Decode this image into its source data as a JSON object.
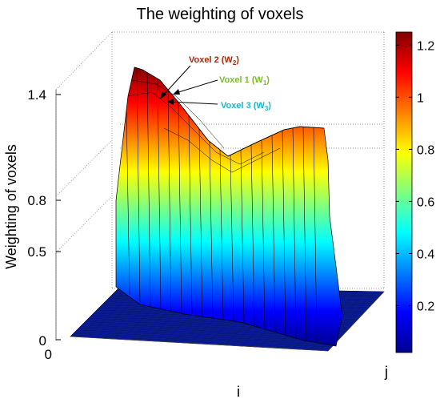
{
  "chart_data": {
    "type": "surface",
    "title": "The weighting of voxels",
    "xlabel": "i",
    "ylabel": "j",
    "zlabel": "Weighting of voxels",
    "z_ticks": [
      "0",
      "0.5",
      "0.8",
      "1.4"
    ],
    "x_ticks": [
      "0"
    ],
    "colormap": "jet",
    "colorbar": {
      "ticks": [
        "0.2",
        "0.4",
        "0.6",
        "0.8",
        "1",
        "1.2"
      ],
      "values": [
        0.2,
        0.4,
        0.6,
        0.8,
        1.0,
        1.2
      ],
      "range": [
        0.02,
        1.25
      ]
    },
    "annotations": [
      {
        "text": "Voxel 2 (W",
        "sub": "2",
        "close": ")",
        "color": "#a52a0a"
      },
      {
        "text": "Voxel 1 (W",
        "sub": "1",
        "close": ")",
        "color": "#7cbc2a"
      },
      {
        "text": "Voxel 3 (W",
        "sub": "3",
        "close": ")",
        "color": "#17b9c8"
      }
    ]
  }
}
